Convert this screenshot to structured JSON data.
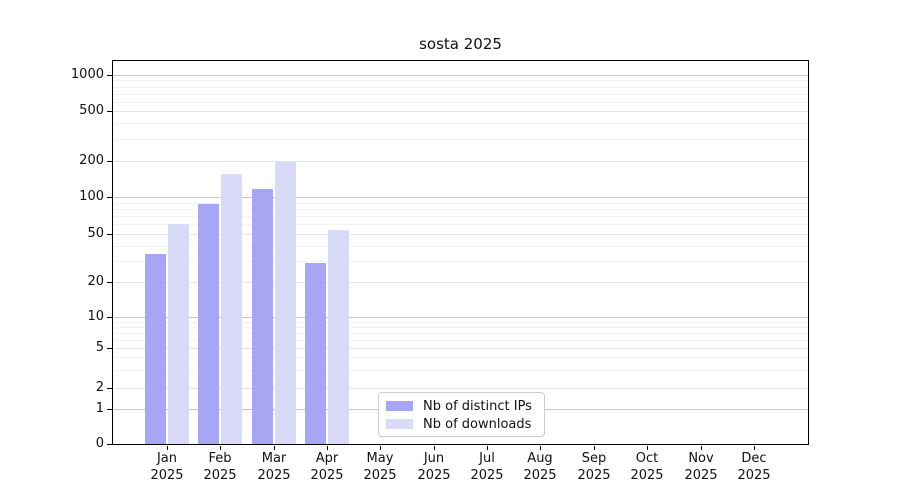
{
  "chart_data": {
    "type": "bar",
    "title": "sosta 2025",
    "year_label": "2025",
    "months": [
      "Jan",
      "Feb",
      "Mar",
      "Apr",
      "May",
      "Jun",
      "Jul",
      "Aug",
      "Sep",
      "Oct",
      "Nov",
      "Dec"
    ],
    "series": [
      {
        "name": "Nb of distinct IPs",
        "color": "#a6a6f2",
        "values": [
          34,
          87,
          117,
          29,
          0,
          0,
          0,
          0,
          0,
          0,
          0,
          0
        ]
      },
      {
        "name": "Nb of downloads",
        "color": "#d9d9f8",
        "values": [
          60,
          155,
          198,
          54,
          0,
          0,
          0,
          0,
          0,
          0,
          0,
          0
        ]
      }
    ],
    "yticks": [
      0,
      1,
      2,
      5,
      10,
      20,
      50,
      100,
      200,
      500,
      1000
    ],
    "ylim": [
      0,
      1000
    ],
    "yscale": "symlog",
    "grid": true,
    "legend": {
      "position": "lower center"
    }
  },
  "colors": {
    "major_grid": "#c6c6c6",
    "labeled_minor_grid": "#e3e3e3",
    "faint_minor_grid": "#f2f2f2",
    "spine": "#000000",
    "text": "#111111"
  }
}
